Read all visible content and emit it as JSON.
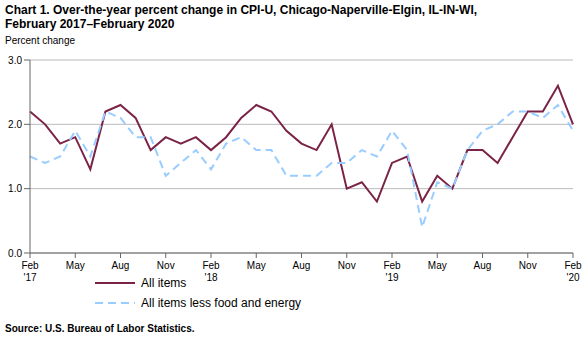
{
  "chart_data": {
    "type": "line",
    "title": "Chart 1. Over-the-year percent change in CPI-U, Chicago-Naperville-Elgin, IL-IN-WI,\nFebruary 2017–February 2020",
    "y_label": "Percent change",
    "source": "Source: U.S. Bureau of Labor Statistics.",
    "categories": [
      "Feb\n'17",
      null,
      null,
      "May",
      null,
      null,
      "Aug",
      null,
      null,
      "Nov",
      null,
      null,
      "Feb\n'18",
      null,
      null,
      "May",
      null,
      null,
      "Aug",
      null,
      null,
      "Nov",
      null,
      null,
      "Feb\n'19",
      null,
      null,
      "May",
      null,
      null,
      "Aug",
      null,
      null,
      "Nov",
      null,
      null,
      "Feb\n'20"
    ],
    "series": [
      {
        "name": "All items",
        "color": "#7b2346",
        "line_style": "solid",
        "values": [
          2.2,
          2.0,
          1.7,
          1.8,
          1.3,
          2.2,
          2.3,
          2.1,
          1.6,
          1.8,
          1.7,
          1.8,
          1.6,
          1.8,
          2.1,
          2.3,
          2.2,
          1.9,
          1.7,
          1.6,
          2.0,
          1.0,
          1.1,
          0.8,
          1.4,
          1.5,
          0.8,
          1.2,
          1.0,
          1.6,
          1.6,
          1.4,
          1.8,
          2.2,
          2.2,
          2.6,
          2.0
        ]
      },
      {
        "name": "All items less food and energy",
        "color": "#99ccff",
        "line_style": "dashed",
        "values": [
          1.5,
          1.4,
          1.5,
          1.9,
          1.5,
          2.2,
          2.1,
          1.8,
          1.8,
          1.2,
          1.4,
          1.6,
          1.3,
          1.7,
          1.8,
          1.6,
          1.6,
          1.2,
          1.2,
          1.2,
          1.4,
          1.4,
          1.6,
          1.5,
          1.9,
          1.6,
          0.4,
          1.1,
          1.0,
          1.6,
          1.9,
          2.0,
          2.2,
          2.2,
          2.1,
          2.3,
          1.9
        ]
      }
    ],
    "ylim": [
      0,
      3
    ],
    "yticks": [
      {
        "value": 0,
        "label": "0.0"
      },
      {
        "value": 1,
        "label": "1.0"
      },
      {
        "value": 2,
        "label": "2.0"
      },
      {
        "value": 3,
        "label": "3.0"
      }
    ],
    "grid": true,
    "legend": "lower left"
  }
}
